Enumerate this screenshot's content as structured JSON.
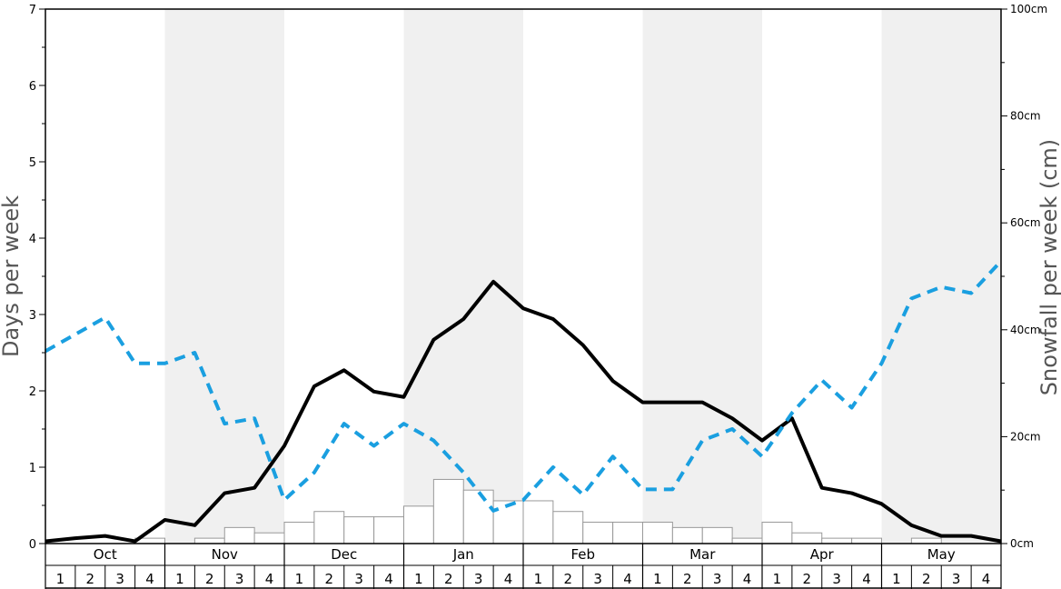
{
  "chart_data": {
    "type": "line",
    "title": "",
    "left_axis": {
      "label": "Days per week",
      "ylim": [
        0,
        7
      ],
      "ticks": [
        "0",
        "1",
        "2",
        "3",
        "4",
        "5",
        "6",
        "7"
      ]
    },
    "right_axis": {
      "label": "Snowfall per week (cm)",
      "ylim": [
        0,
        100
      ],
      "ticks": [
        "0cm",
        "20cm",
        "40cm",
        "60cm",
        "80cm",
        "100cm"
      ]
    },
    "months": [
      "Oct",
      "Nov",
      "Dec",
      "Jan",
      "Feb",
      "Mar",
      "Apr",
      "May"
    ],
    "week_labels": [
      "1",
      "2",
      "3",
      "4"
    ],
    "shaded_months": [
      "Nov",
      "Jan",
      "Mar",
      "May"
    ],
    "colors": {
      "solid_series": "#000000",
      "dashed_series": "#1a9fe0",
      "bars_stroke": "#999999",
      "band": "#f0f0f0"
    },
    "series": [
      {
        "style": "solid",
        "axis": "left",
        "values": [
          0.03,
          0.07,
          0.1,
          0.03,
          0.31,
          0.24,
          0.66,
          0.73,
          1.28,
          2.06,
          2.27,
          1.99,
          1.92,
          2.67,
          2.94,
          3.43,
          3.08,
          2.94,
          2.6,
          2.13,
          1.85,
          1.85,
          1.85,
          1.64,
          1.35,
          1.64,
          0.73,
          0.66,
          0.52,
          0.24,
          0.1,
          0.1,
          0.03
        ]
      },
      {
        "style": "dashed",
        "axis": "left",
        "values": [
          2.52,
          2.74,
          2.96,
          2.36,
          2.36,
          2.5,
          1.57,
          1.64,
          0.57,
          0.93,
          1.57,
          1.28,
          1.57,
          1.35,
          0.93,
          0.43,
          0.57,
          1.0,
          0.64,
          1.14,
          0.71,
          0.71,
          1.35,
          1.5,
          1.14,
          1.71,
          2.14,
          1.78,
          2.36,
          3.21,
          3.36,
          3.28,
          3.7
        ]
      },
      {
        "style": "bars",
        "axis": "right",
        "values": [
          0,
          0,
          0,
          1,
          0,
          1,
          3,
          2,
          4,
          6,
          5,
          5,
          7,
          12,
          10,
          8,
          8,
          6,
          4,
          4,
          4,
          3,
          3,
          1,
          4,
          2,
          1,
          1,
          0,
          1,
          0,
          0
        ]
      }
    ]
  }
}
